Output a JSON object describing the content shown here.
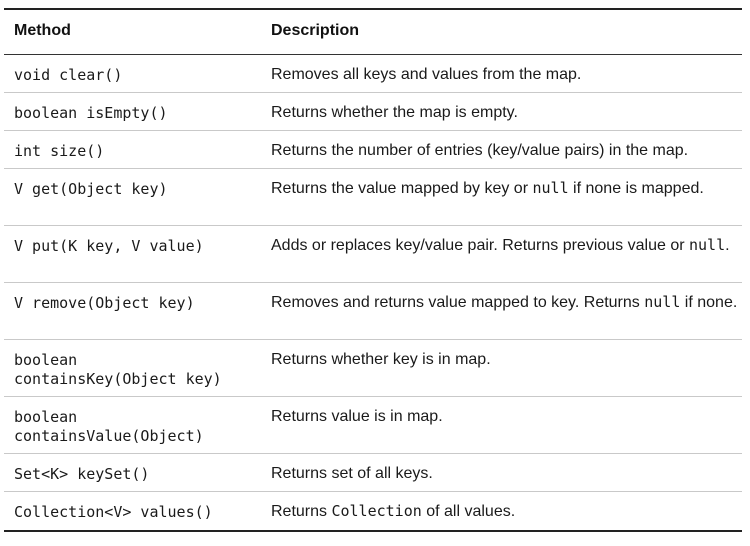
{
  "table": {
    "headers": {
      "method": "Method",
      "description": "Description"
    },
    "rows": [
      {
        "method": [
          "void clear()"
        ],
        "description": [
          {
            "t": "Removes all keys and values from the map."
          }
        ]
      },
      {
        "method": [
          "boolean isEmpty()"
        ],
        "description": [
          {
            "t": "Returns whether the map is empty."
          }
        ]
      },
      {
        "method": [
          "int size()"
        ],
        "description": [
          {
            "t": "Returns the number of entries (key/value pairs) in the map."
          }
        ]
      },
      {
        "method": [
          "V get(Object key)"
        ],
        "description": [
          {
            "t": "Returns the value mapped by key or "
          },
          {
            "t": "null",
            "code": true
          },
          {
            "t": " if none is mapped."
          }
        ]
      },
      {
        "method": [
          "V put(K key, V value)"
        ],
        "description": [
          {
            "t": "Adds or replaces key/value pair. Returns previous value or "
          },
          {
            "t": "null",
            "code": true
          },
          {
            "t": "."
          }
        ]
      },
      {
        "method": [
          "V remove(Object key)"
        ],
        "description": [
          {
            "t": "Removes and returns value mapped to key. Returns "
          },
          {
            "t": "null",
            "code": true
          },
          {
            "t": " if none."
          }
        ]
      },
      {
        "method": [
          "boolean",
          "containsKey(Object key)"
        ],
        "description": [
          {
            "t": "Returns whether key is in map."
          }
        ]
      },
      {
        "method": [
          "boolean",
          "containsValue(Object)"
        ],
        "description": [
          {
            "t": "Returns value is in map."
          }
        ]
      },
      {
        "method": [
          "Set<K> keySet()"
        ],
        "description": [
          {
            "t": "Returns set of all keys."
          }
        ]
      },
      {
        "method": [
          "Collection<V> values()"
        ],
        "description": [
          {
            "t": "Returns "
          },
          {
            "t": "Collection",
            "code": true
          },
          {
            "t": " of all values."
          }
        ]
      }
    ]
  }
}
